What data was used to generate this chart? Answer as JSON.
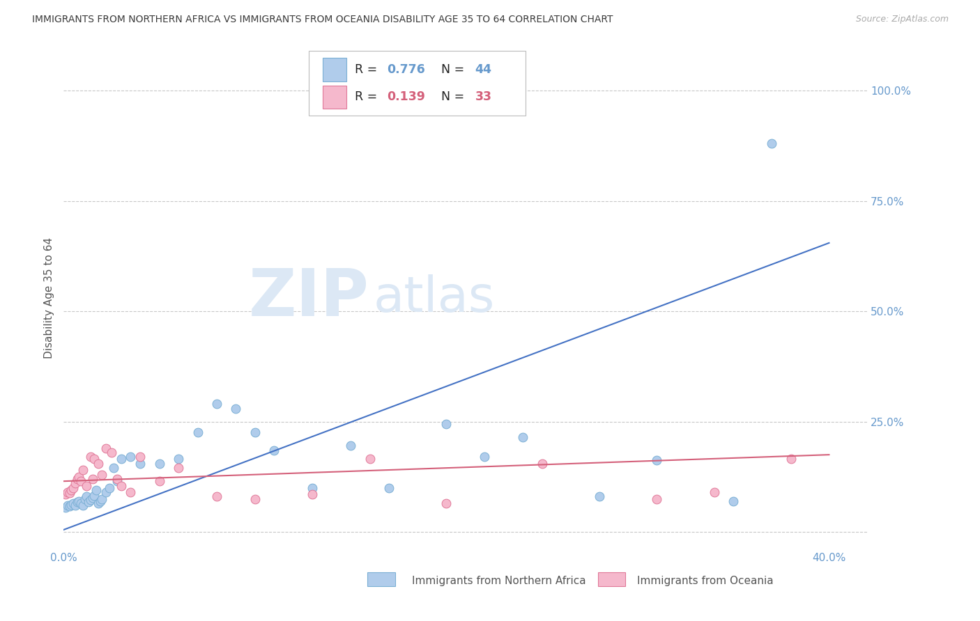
{
  "title": "IMMIGRANTS FROM NORTHERN AFRICA VS IMMIGRANTS FROM OCEANIA DISABILITY AGE 35 TO 64 CORRELATION CHART",
  "source": "Source: ZipAtlas.com",
  "ylabel": "Disability Age 35 to 64",
  "xlim": [
    0.0,
    0.42
  ],
  "ylim": [
    -0.04,
    1.1
  ],
  "yticks": [
    0.0,
    0.25,
    0.5,
    0.75,
    1.0
  ],
  "ytick_labels": [
    "",
    "25.0%",
    "50.0%",
    "75.0%",
    "100.0%"
  ],
  "xticks": [
    0.0,
    0.1,
    0.2,
    0.3,
    0.4
  ],
  "xtick_labels": [
    "0.0%",
    "",
    "",
    "",
    "40.0%"
  ],
  "legend_r1": "0.776",
  "legend_n1": "44",
  "legend_r2": "0.139",
  "legend_n2": "33",
  "series1_color": "#b0cceb",
  "series1_edge": "#7aafd4",
  "series2_color": "#f5b8cc",
  "series2_edge": "#e07898",
  "trend1_color": "#4472c4",
  "trend2_color": "#d4607a",
  "grid_color": "#c8c8c8",
  "title_color": "#3a3a3a",
  "axis_color": "#6699cc",
  "blue_scatter_x": [
    0.001,
    0.002,
    0.003,
    0.004,
    0.005,
    0.006,
    0.007,
    0.008,
    0.009,
    0.01,
    0.011,
    0.012,
    0.013,
    0.014,
    0.015,
    0.016,
    0.017,
    0.018,
    0.019,
    0.02,
    0.022,
    0.024,
    0.026,
    0.028,
    0.03,
    0.035,
    0.04,
    0.05,
    0.06,
    0.07,
    0.08,
    0.09,
    0.1,
    0.11,
    0.13,
    0.15,
    0.17,
    0.2,
    0.22,
    0.24,
    0.28,
    0.31,
    0.35,
    0.37
  ],
  "blue_scatter_y": [
    0.055,
    0.06,
    0.058,
    0.062,
    0.065,
    0.06,
    0.068,
    0.07,
    0.065,
    0.06,
    0.075,
    0.08,
    0.068,
    0.072,
    0.078,
    0.082,
    0.095,
    0.065,
    0.07,
    0.075,
    0.09,
    0.1,
    0.145,
    0.115,
    0.165,
    0.17,
    0.155,
    0.155,
    0.165,
    0.225,
    0.29,
    0.28,
    0.225,
    0.185,
    0.1,
    0.195,
    0.1,
    0.245,
    0.17,
    0.215,
    0.08,
    0.162,
    0.07,
    0.88
  ],
  "pink_scatter_x": [
    0.001,
    0.002,
    0.003,
    0.004,
    0.005,
    0.006,
    0.007,
    0.008,
    0.009,
    0.01,
    0.012,
    0.014,
    0.015,
    0.016,
    0.018,
    0.02,
    0.022,
    0.025,
    0.028,
    0.03,
    0.035,
    0.04,
    0.05,
    0.06,
    0.08,
    0.1,
    0.13,
    0.16,
    0.2,
    0.25,
    0.31,
    0.34,
    0.38
  ],
  "pink_scatter_y": [
    0.085,
    0.09,
    0.088,
    0.095,
    0.1,
    0.11,
    0.12,
    0.125,
    0.115,
    0.14,
    0.105,
    0.17,
    0.12,
    0.165,
    0.155,
    0.13,
    0.19,
    0.18,
    0.12,
    0.105,
    0.09,
    0.17,
    0.115,
    0.145,
    0.08,
    0.075,
    0.085,
    0.165,
    0.065,
    0.155,
    0.075,
    0.09,
    0.165
  ],
  "trend1_x": [
    0.0,
    0.4
  ],
  "trend1_y": [
    0.005,
    0.655
  ],
  "trend2_x": [
    0.0,
    0.4
  ],
  "trend2_y": [
    0.115,
    0.175
  ],
  "figsize": [
    14.06,
    8.92
  ],
  "dpi": 100
}
